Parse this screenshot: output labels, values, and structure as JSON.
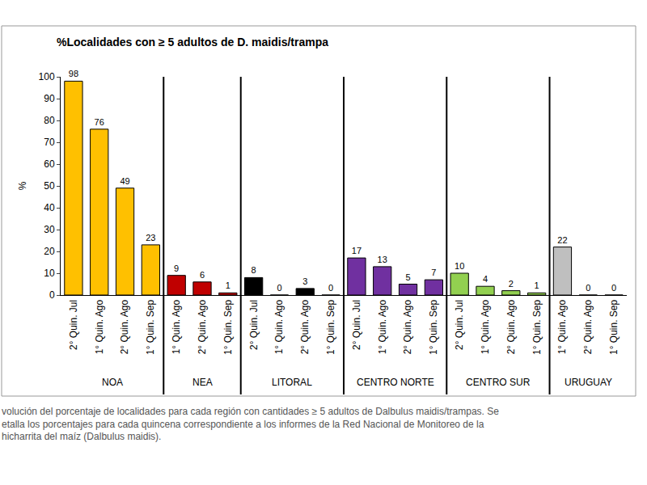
{
  "chart_data": {
    "type": "bar",
    "title": "%Localidades con ≥ 5 adultos de D. maidis/trampa",
    "y_label": "%",
    "groups": [
      {
        "name": "NOA",
        "color": "#FFC000",
        "categories": [
          "2° Quin. Jul",
          "1° Quin. Ago",
          "2° Quin. Ago",
          "1° Quin. Sep"
        ],
        "values": [
          98,
          76,
          49,
          23
        ]
      },
      {
        "name": "NEA",
        "color": "#C00000",
        "categories": [
          "1° Quin. Ago",
          "2° Quin. Ago",
          "1° Quin. Sep"
        ],
        "values": [
          9,
          6,
          1
        ]
      },
      {
        "name": "LITORAL",
        "color": "#000000",
        "categories": [
          "2° Quin. Jul",
          "1° Quin. Ago",
          "2° Quin. Ago",
          "1° Quin. Sep"
        ],
        "values": [
          8,
          0,
          3,
          0
        ]
      },
      {
        "name": "CENTRO NORTE",
        "color": "#7030A0",
        "categories": [
          "2° Quin. Jul",
          "1° Quin. Ago",
          "2° Quin. Ago",
          "1° Quin. Sep"
        ],
        "values": [
          17,
          13,
          5,
          7
        ]
      },
      {
        "name": "CENTRO SUR",
        "color": "#92D050",
        "categories": [
          "2° Quin. Jul",
          "1° Quin. Ago",
          "2° Quin. Ago",
          "1° Quin. Sep"
        ],
        "values": [
          10,
          4,
          2,
          1
        ]
      },
      {
        "name": "URUGUAY",
        "color": "#BFBFBF",
        "categories": [
          "1° Quin. Ago",
          "2° Quin. Ago",
          "1° Quin. Sep"
        ],
        "values": [
          22,
          0,
          0
        ]
      }
    ],
    "ylim": [
      0,
      100
    ],
    "yticks": [
      0,
      10,
      20,
      30,
      40,
      50,
      60,
      70,
      80,
      90,
      100
    ],
    "grid": false,
    "data_labels": true,
    "caption": [
      "volución del porcentaje de localidades para cada región con cantidades ≥ 5 adultos de Dalbulus maidis/trampas. Se",
      "etalla los porcentajes para cada quincena correspondiente a los informes de la Red Nacional de Monitoreo de la",
      "hicharrita del maíz (Dalbulus maidis)."
    ]
  }
}
